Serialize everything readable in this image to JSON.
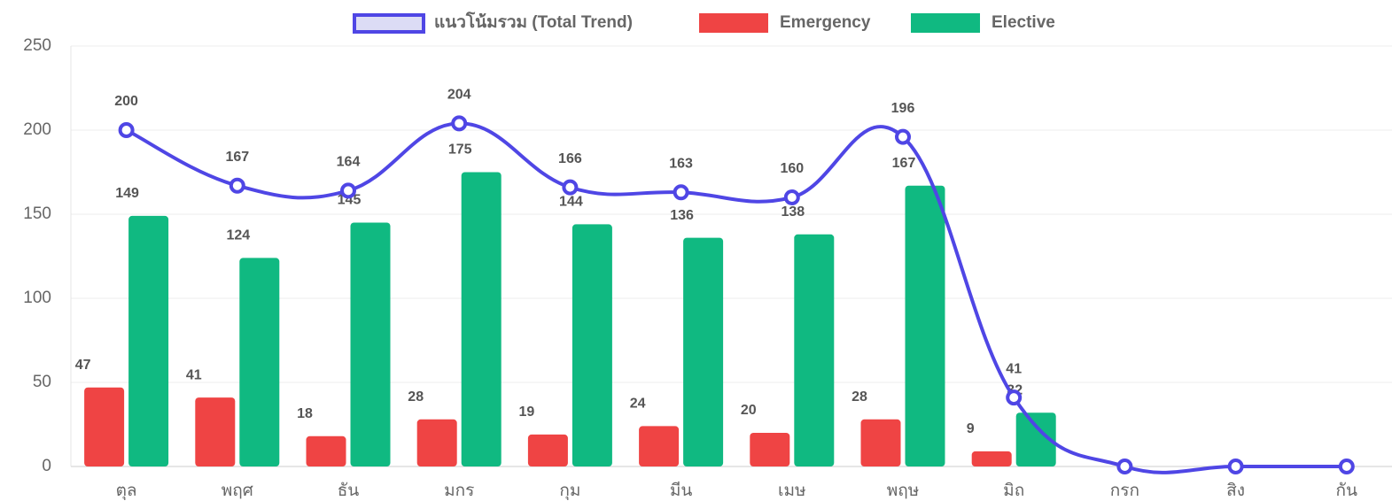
{
  "chart_data": {
    "type": "bar_line",
    "categories": [
      "ตุล",
      "พฤศ",
      "ธัน",
      "มกร",
      "กุม",
      "มีน",
      "เมษ",
      "พฤษ",
      "มิถ",
      "กรก",
      "สิง",
      "กัน"
    ],
    "series": [
      {
        "name": "แนวโน้มรวม (Total Trend)",
        "type": "line",
        "color": "#4f46e5",
        "fill": "#dcdcf5",
        "values": [
          200,
          167,
          164,
          204,
          166,
          163,
          160,
          196,
          41,
          0,
          0,
          0
        ],
        "value_labels": [
          "200",
          "167",
          "164",
          "204",
          "166",
          "163",
          "160",
          "196",
          "41",
          null,
          null,
          null
        ]
      },
      {
        "name": "Emergency",
        "type": "bar",
        "color": "#ef4444",
        "values": [
          47,
          41,
          18,
          28,
          19,
          24,
          20,
          28,
          9,
          null,
          null,
          null
        ]
      },
      {
        "name": "Elective",
        "type": "bar",
        "color": "#10b981",
        "values": [
          149,
          124,
          145,
          175,
          144,
          136,
          138,
          167,
          32,
          null,
          null,
          null
        ]
      }
    ],
    "ylim": [
      0,
      250
    ],
    "yticks": [
      0,
      50,
      100,
      150,
      200,
      250
    ],
    "grid": true,
    "legend": "top"
  }
}
